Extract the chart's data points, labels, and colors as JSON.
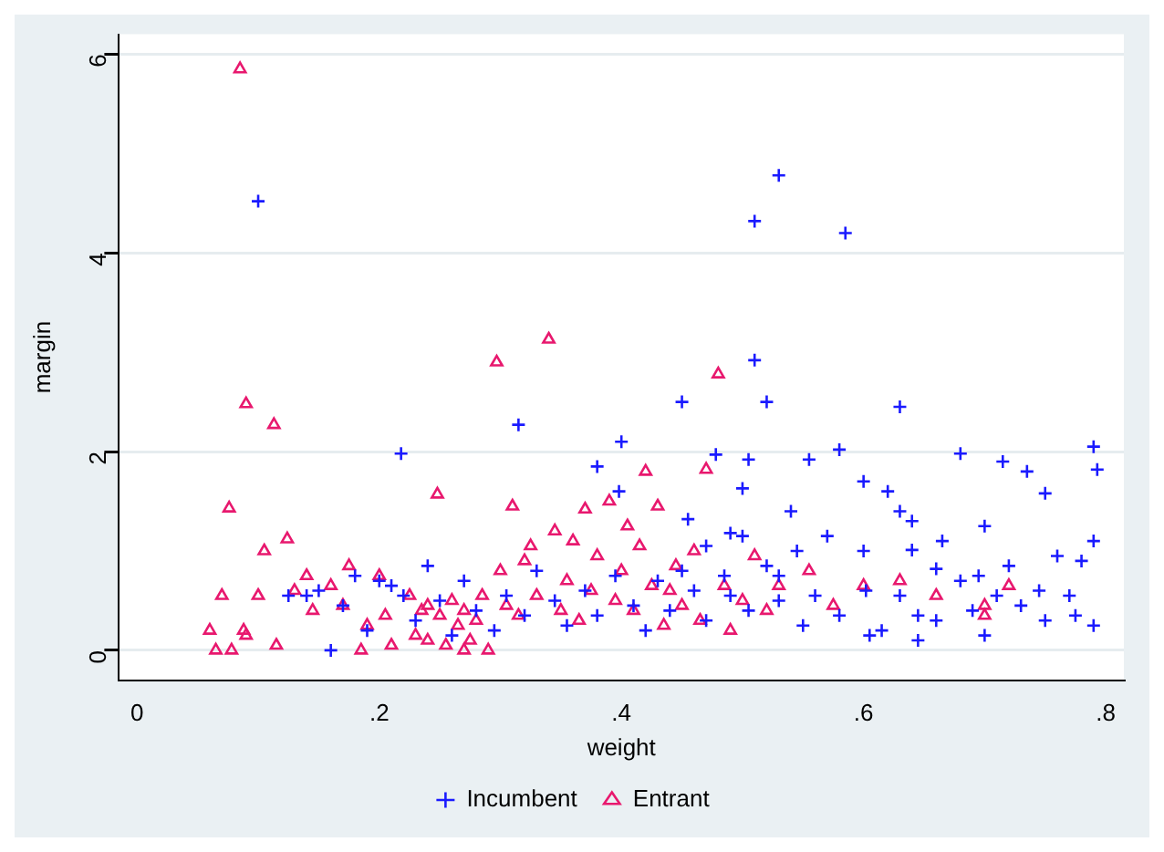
{
  "chart_data": {
    "type": "scatter",
    "xlabel": "weight",
    "ylabel": "margin",
    "xlim": [
      -0.015,
      0.815
    ],
    "ylim": [
      -0.3,
      6.2
    ],
    "xticks": [
      0,
      {
        "value": 0.2,
        "label": ".2"
      },
      {
        "value": 0.4,
        "label": ".4"
      },
      {
        "value": 0.6,
        "label": ".6"
      },
      {
        "value": 0.8,
        "label": ".8"
      }
    ],
    "yticks": [
      0,
      2,
      4,
      6
    ],
    "grid": "y",
    "legend": "bottom",
    "series": [
      {
        "name": "Incumbent",
        "color": "#1a1aff",
        "marker": "cross",
        "x": [
          0.1,
          0.51,
          0.53,
          0.585,
          0.218,
          0.315,
          0.4,
          0.45,
          0.52,
          0.51,
          0.63,
          0.79,
          0.793,
          0.478,
          0.505,
          0.58,
          0.68,
          0.715,
          0.735,
          0.75,
          0.555,
          0.665,
          0.62,
          0.63,
          0.54,
          0.5,
          0.38,
          0.398,
          0.455,
          0.49,
          0.57,
          0.6,
          0.64,
          0.7,
          0.72,
          0.76,
          0.78,
          0.79,
          0.745,
          0.775,
          0.79,
          0.77,
          0.73,
          0.71,
          0.69,
          0.68,
          0.66,
          0.645,
          0.63,
          0.615,
          0.602,
          0.605,
          0.58,
          0.56,
          0.55,
          0.53,
          0.52,
          0.505,
          0.49,
          0.485,
          0.47,
          0.46,
          0.45,
          0.44,
          0.43,
          0.42,
          0.41,
          0.395,
          0.38,
          0.37,
          0.355,
          0.345,
          0.33,
          0.32,
          0.305,
          0.295,
          0.28,
          0.27,
          0.26,
          0.25,
          0.24,
          0.23,
          0.22,
          0.21,
          0.2,
          0.19,
          0.18,
          0.17,
          0.16,
          0.15,
          0.14,
          0.125,
          0.645,
          0.66,
          0.64,
          0.545,
          0.6,
          0.5,
          0.47,
          0.53,
          0.695,
          0.75,
          0.7
        ],
        "values": [
          4.52,
          4.32,
          4.78,
          4.2,
          1.98,
          2.27,
          2.1,
          2.5,
          2.5,
          2.92,
          2.45,
          2.05,
          1.82,
          1.97,
          1.92,
          2.02,
          1.98,
          1.9,
          1.8,
          1.58,
          1.92,
          1.1,
          1.6,
          1.4,
          1.4,
          1.63,
          1.85,
          1.6,
          1.32,
          1.18,
          1.15,
          1.0,
          1.3,
          1.25,
          0.85,
          0.95,
          0.9,
          1.1,
          0.6,
          0.35,
          0.25,
          0.55,
          0.45,
          0.55,
          0.4,
          0.7,
          0.3,
          0.35,
          0.55,
          0.2,
          0.6,
          0.15,
          0.35,
          0.55,
          0.25,
          0.5,
          0.85,
          0.4,
          0.55,
          0.75,
          0.3,
          0.6,
          0.8,
          0.4,
          0.7,
          0.2,
          0.45,
          0.75,
          0.35,
          0.6,
          0.25,
          0.5,
          0.8,
          0.35,
          0.55,
          0.2,
          0.4,
          0.7,
          0.15,
          0.5,
          0.85,
          0.3,
          0.55,
          0.65,
          0.7,
          0.2,
          0.75,
          0.45,
          0.0,
          0.6,
          0.55,
          0.55,
          0.1,
          0.82,
          1.01,
          1.0,
          1.7,
          1.15,
          1.05,
          0.75,
          0.75,
          0.3,
          0.15
        ]
      },
      {
        "name": "Entrant",
        "color": "#e8186e",
        "marker": "triangle",
        "x": [
          0.085,
          0.09,
          0.113,
          0.076,
          0.105,
          0.124,
          0.07,
          0.06,
          0.065,
          0.078,
          0.088,
          0.09,
          0.1,
          0.115,
          0.13,
          0.14,
          0.145,
          0.16,
          0.17,
          0.175,
          0.185,
          0.19,
          0.2,
          0.205,
          0.21,
          0.225,
          0.23,
          0.235,
          0.24,
          0.248,
          0.25,
          0.255,
          0.26,
          0.265,
          0.27,
          0.275,
          0.28,
          0.285,
          0.29,
          0.297,
          0.3,
          0.305,
          0.31,
          0.315,
          0.32,
          0.325,
          0.33,
          0.34,
          0.345,
          0.35,
          0.355,
          0.36,
          0.365,
          0.37,
          0.375,
          0.38,
          0.39,
          0.395,
          0.4,
          0.405,
          0.41,
          0.415,
          0.42,
          0.425,
          0.43,
          0.435,
          0.44,
          0.445,
          0.45,
          0.46,
          0.465,
          0.47,
          0.48,
          0.485,
          0.49,
          0.5,
          0.51,
          0.52,
          0.53,
          0.555,
          0.575,
          0.6,
          0.63,
          0.66,
          0.7,
          0.72,
          0.7,
          0.27,
          0.24
        ],
        "values": [
          5.85,
          2.48,
          2.27,
          1.43,
          1.0,
          1.12,
          0.55,
          0.2,
          0.0,
          0.0,
          0.2,
          0.15,
          0.55,
          0.05,
          0.6,
          0.75,
          0.4,
          0.65,
          0.45,
          0.85,
          0.0,
          0.25,
          0.75,
          0.35,
          0.05,
          0.55,
          0.15,
          0.4,
          0.1,
          1.57,
          0.35,
          0.05,
          0.5,
          0.25,
          0.4,
          0.1,
          0.3,
          0.55,
          0.0,
          2.9,
          0.8,
          0.45,
          1.45,
          0.35,
          0.9,
          1.05,
          0.55,
          3.13,
          1.2,
          0.4,
          0.7,
          1.1,
          0.3,
          1.42,
          0.6,
          0.95,
          1.5,
          0.5,
          0.8,
          1.25,
          0.4,
          1.05,
          1.8,
          0.65,
          1.45,
          0.25,
          0.6,
          0.85,
          0.45,
          1.0,
          0.3,
          1.82,
          2.78,
          0.65,
          0.2,
          0.5,
          0.95,
          0.4,
          0.65,
          0.8,
          0.45,
          0.65,
          0.7,
          0.55,
          0.45,
          0.65,
          0.35,
          0.0,
          0.45
        ]
      }
    ]
  }
}
